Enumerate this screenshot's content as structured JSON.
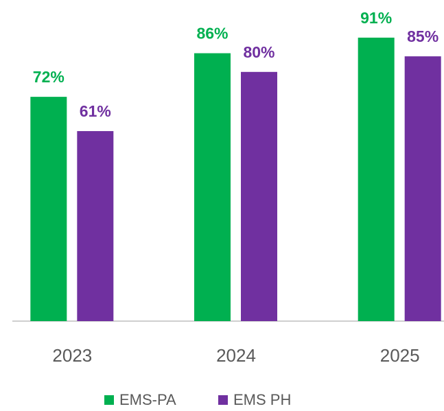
{
  "chart_data": {
    "type": "bar",
    "categories": [
      "2023",
      "2024",
      "2025"
    ],
    "series": [
      {
        "name": "EMS-PA",
        "color": "#00b050",
        "values": [
          72,
          86,
          91
        ],
        "value_labels": [
          "72%",
          "86%",
          "91%"
        ]
      },
      {
        "name": "EMS PH",
        "color": "#7030a0",
        "values": [
          61,
          80,
          85
        ],
        "value_labels": [
          "61%",
          "80%",
          "85%"
        ]
      }
    ],
    "ylim": [
      0,
      100
    ]
  }
}
